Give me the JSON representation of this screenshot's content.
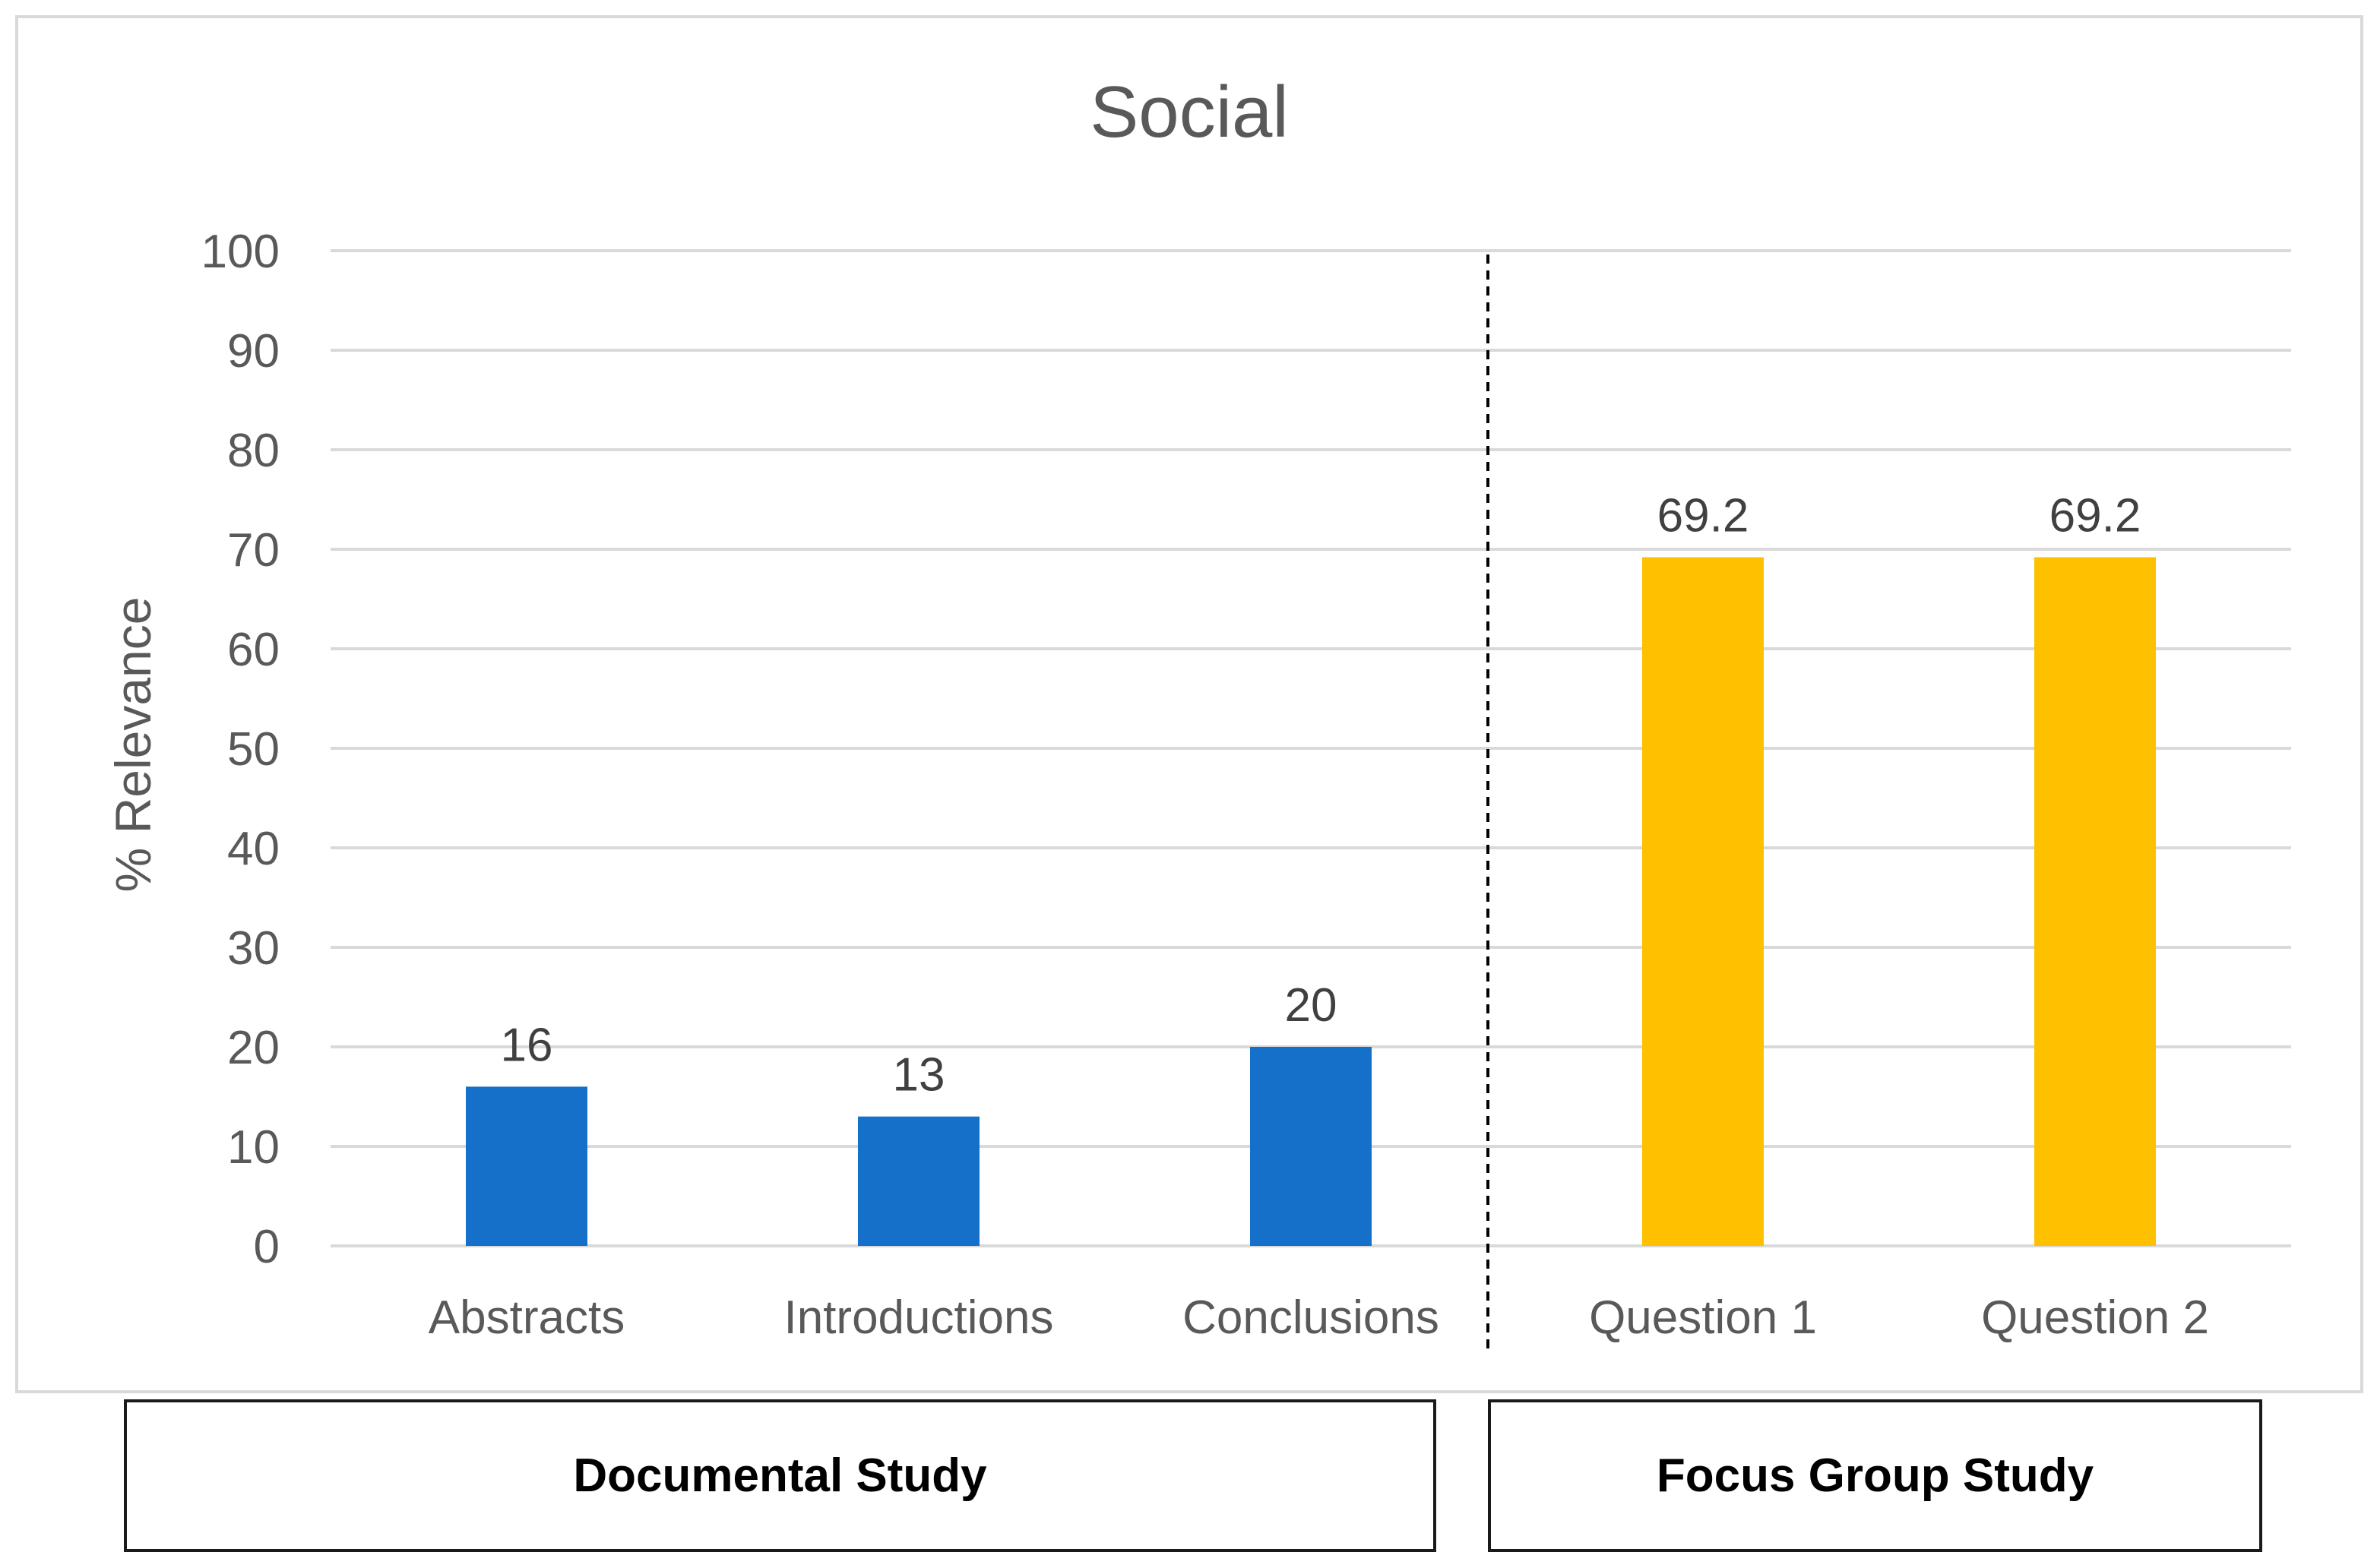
{
  "chart_data": {
    "type": "bar",
    "title": "Social",
    "ylabel": "% Relevance",
    "xlabel": "",
    "ylim": [
      0,
      100
    ],
    "yticks": [
      0,
      10,
      20,
      30,
      40,
      50,
      60,
      70,
      80,
      90,
      100
    ],
    "grid": true,
    "categories": [
      "Abstracts",
      "Introductions",
      "Conclusions",
      "Question 1",
      "Question 2"
    ],
    "values": [
      16,
      13,
      20,
      69.2,
      69.2
    ],
    "data_labels": [
      "16",
      "13",
      "20",
      "69.2",
      "69.2"
    ],
    "groups": [
      {
        "name": "Documental Study",
        "categories": [
          "Abstracts",
          "Introductions",
          "Conclusions"
        ],
        "color": "#1470c8"
      },
      {
        "name": "Focus Group Study",
        "categories": [
          "Question 1",
          "Question 2"
        ],
        "color": "#ffc000"
      }
    ],
    "separator": "dashed vertical line between Conclusions and Question 1"
  },
  "colors": {
    "documental": "#1470c8",
    "focus_group": "#ffc000",
    "grid": "#d9d9d9",
    "text": "#595959",
    "label_text": "#404040",
    "frame": "#d9d9d9"
  }
}
